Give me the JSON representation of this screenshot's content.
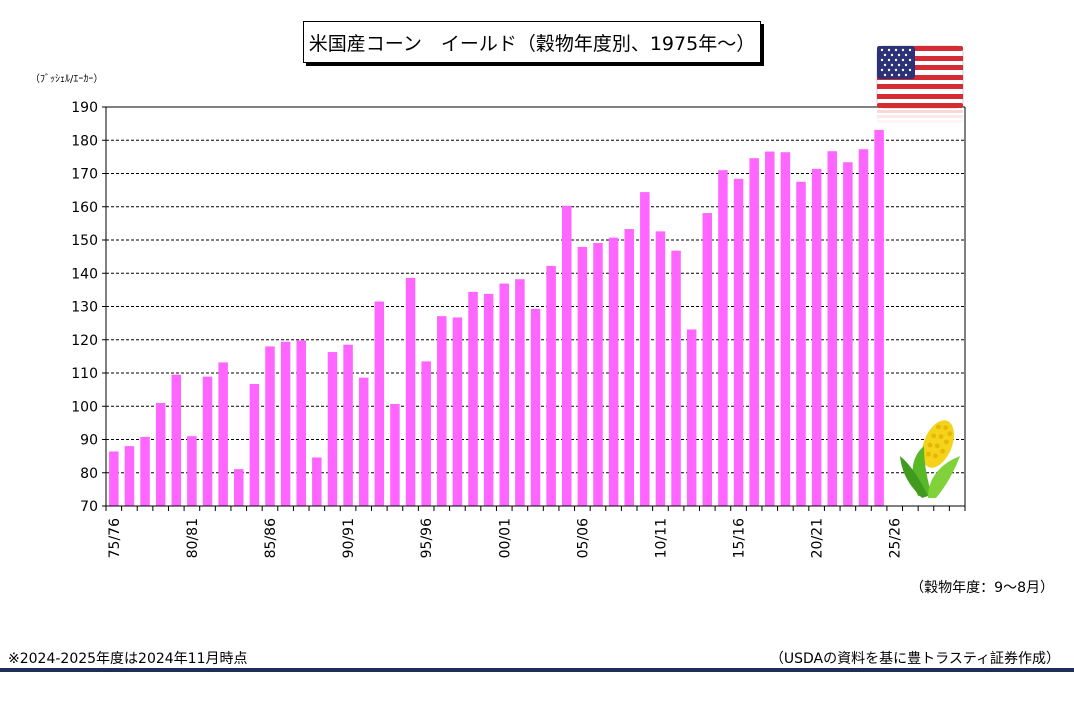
{
  "title": "米国産コーン　イールド（穀物年度別、1975年～）",
  "y_unit": "（ﾌﾞｯｼｪﾙ/ｴｰｶｰ）",
  "x_note": "（穀物年度：9～8月）",
  "footnote": "※2024-2025年度は2024年11月時点",
  "source": "（USDAの資料を基に豊トラスティ証券作成）",
  "decorations": {
    "flag_icon": "us-flag-icon",
    "corn_icon": "corn-icon"
  },
  "colors": {
    "bar": "#ff66ff",
    "bottom_rule": "#1f2d5a"
  },
  "chart_data": {
    "type": "bar",
    "title": "米国産コーン　イールド（穀物年度別、1975年～）",
    "ylabel": "（ﾌﾞｯｼｪﾙ/ｴｰｶｰ）",
    "xlabel": "（穀物年度：9～8月）",
    "ylim": [
      70,
      190
    ],
    "yticks": [
      70,
      80,
      90,
      100,
      110,
      120,
      130,
      140,
      150,
      160,
      170,
      180,
      190
    ],
    "grid": "horizontal dashed",
    "tick_labels": [
      "75/76",
      "80/81",
      "85/86",
      "90/91",
      "95/96",
      "00/01",
      "05/06",
      "10/11",
      "15/16",
      "20/21",
      "25/26"
    ],
    "categories": [
      "75/76",
      "76/77",
      "77/78",
      "78/79",
      "79/80",
      "80/81",
      "81/82",
      "82/83",
      "83/84",
      "84/85",
      "85/86",
      "86/87",
      "87/88",
      "88/89",
      "89/90",
      "90/91",
      "91/92",
      "92/93",
      "93/94",
      "94/95",
      "95/96",
      "96/97",
      "97/98",
      "98/99",
      "99/00",
      "00/01",
      "01/02",
      "02/03",
      "03/04",
      "04/05",
      "05/06",
      "06/07",
      "07/08",
      "08/09",
      "09/10",
      "10/11",
      "11/12",
      "12/13",
      "13/14",
      "14/15",
      "15/16",
      "16/17",
      "17/18",
      "18/19",
      "19/20",
      "20/21",
      "21/22",
      "22/23",
      "23/24",
      "24/25",
      "25/26",
      "26/27",
      "27/28",
      "28/29",
      "29/30"
    ],
    "values": [
      86.4,
      88.0,
      90.8,
      101.0,
      109.5,
      91.0,
      108.9,
      113.2,
      81.1,
      106.7,
      118.0,
      119.4,
      119.8,
      84.6,
      116.3,
      118.5,
      108.6,
      131.5,
      100.7,
      138.6,
      113.5,
      127.1,
      126.7,
      134.4,
      133.8,
      136.9,
      138.2,
      129.3,
      142.2,
      160.3,
      147.9,
      149.1,
      150.7,
      153.3,
      164.4,
      152.6,
      146.8,
      123.1,
      158.1,
      171.0,
      168.4,
      174.6,
      176.6,
      176.4,
      167.5,
      171.4,
      176.7,
      173.4,
      177.3,
      183.1,
      null,
      null,
      null,
      null,
      null
    ]
  }
}
